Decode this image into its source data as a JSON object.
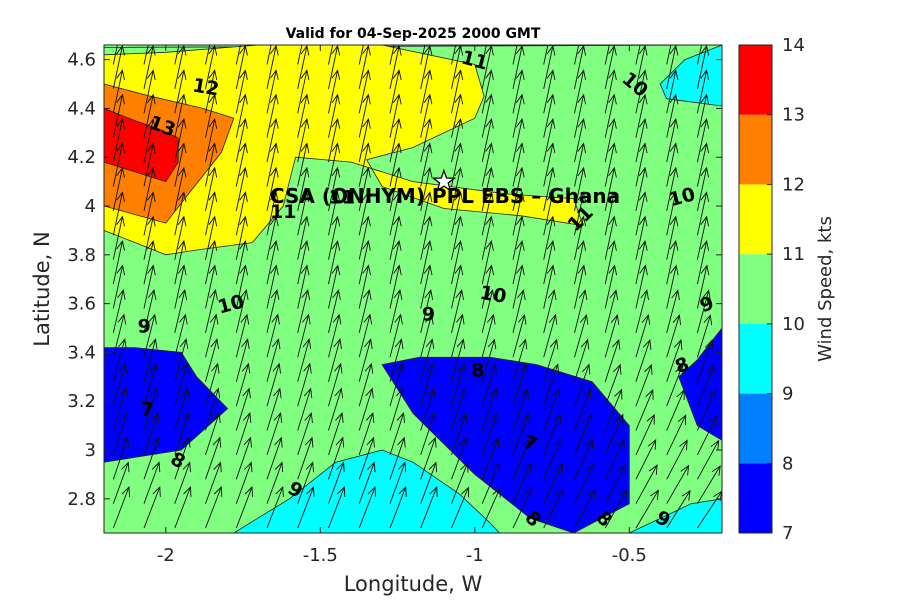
{
  "chart_data": {
    "type": "heatmap",
    "title": "Valid for 04-Sep-2025 2000 GMT",
    "xlabel": "Longitude, W",
    "ylabel": "Latitude, N",
    "xlim": [
      -2.2,
      -0.2
    ],
    "ylim": [
      2.66,
      4.66
    ],
    "x_ticks": [
      -2,
      -1.5,
      -1,
      -0.5
    ],
    "x_tick_labels": [
      "-2",
      "-1.5",
      "-1",
      "-0.5"
    ],
    "y_ticks": [
      2.8,
      3,
      3.2,
      3.4,
      3.6,
      3.8,
      4,
      4.2,
      4.4,
      4.6
    ],
    "y_tick_labels": [
      "2.8",
      "3",
      "3.2",
      "3.4",
      "3.6",
      "3.8",
      "4",
      "4.2",
      "4.4",
      "4.6"
    ],
    "colorbar": {
      "label": "Wind Speed, kts",
      "ticks": [
        7,
        8,
        9,
        10,
        11,
        12,
        13,
        14
      ],
      "tick_labels": [
        "7",
        "8",
        "9",
        "10",
        "11",
        "12",
        "13",
        "14"
      ],
      "bands": [
        {
          "from": 7,
          "to": 8,
          "color": "#0000ff"
        },
        {
          "from": 8,
          "to": 9,
          "color": "#0080ff"
        },
        {
          "from": 9,
          "to": 10,
          "color": "#00ffff"
        },
        {
          "from": 10,
          "to": 11,
          "color": "#80ff80"
        },
        {
          "from": 11,
          "to": 12,
          "color": "#ffff00"
        },
        {
          "from": 12,
          "to": 13,
          "color": "#ff8000"
        },
        {
          "from": 13,
          "to": 14,
          "color": "#ff0000"
        }
      ]
    },
    "filled_regions": [
      {
        "level": 8,
        "color": "#0080ff",
        "points": [
          [
            -2.2,
            3.6
          ],
          [
            -1.9,
            3.48
          ],
          [
            -1.75,
            3.5
          ],
          [
            -1.5,
            3.55
          ],
          [
            -1.3,
            3.58
          ],
          [
            -1.0,
            3.52
          ],
          [
            -0.7,
            3.48
          ],
          [
            -0.4,
            3.55
          ],
          [
            -0.2,
            3.67
          ],
          [
            -0.2,
            2.66
          ],
          [
            -2.2,
            2.66
          ]
        ]
      },
      {
        "level": 9,
        "color": "#00ffff",
        "points": [
          [
            -2.2,
            3.88
          ],
          [
            -2.0,
            3.8
          ],
          [
            -1.85,
            3.82
          ],
          [
            -1.7,
            3.8
          ],
          [
            -1.4,
            3.76
          ],
          [
            -1.1,
            3.74
          ],
          [
            -0.9,
            3.69
          ],
          [
            -0.6,
            3.62
          ],
          [
            -0.45,
            3.72
          ],
          [
            -0.35,
            3.85
          ],
          [
            -0.28,
            3.95
          ],
          [
            -0.2,
            4.0
          ],
          [
            -0.2,
            2.66
          ],
          [
            -2.2,
            2.66
          ]
        ]
      },
      {
        "level": 10,
        "color": "#80ff80",
        "points": [
          [
            -2.2,
            4.65
          ],
          [
            -2.05,
            4.62
          ],
          [
            -1.8,
            4.62
          ],
          [
            -1.3,
            4.62
          ],
          [
            -0.9,
            4.62
          ],
          [
            -0.75,
            4.64
          ],
          [
            -0.6,
            4.66
          ],
          [
            -2.2,
            4.66
          ]
        ]
      },
      {
        "level": 10,
        "color": "#80ff80",
        "points": [
          [
            -2.2,
            4.65
          ],
          [
            -0.2,
            4.66
          ],
          [
            -0.2,
            2.66
          ],
          [
            -2.2,
            2.66
          ]
        ]
      },
      {
        "level": 11,
        "color": "#ffff00",
        "points": [
          [
            -2.2,
            4.62
          ],
          [
            -2.0,
            4.63
          ],
          [
            -1.7,
            4.66
          ],
          [
            -1.3,
            4.66
          ],
          [
            -1.0,
            4.58
          ],
          [
            -0.97,
            4.45
          ],
          [
            -1.0,
            4.36
          ],
          [
            -1.2,
            4.24
          ],
          [
            -1.35,
            4.19
          ],
          [
            -1.3,
            4.08
          ],
          [
            -1.1,
            3.99
          ],
          [
            -0.85,
            3.96
          ],
          [
            -0.65,
            3.92
          ],
          [
            -0.68,
            4.03
          ],
          [
            -0.9,
            4.05
          ],
          [
            -1.2,
            4.1
          ],
          [
            -1.4,
            4.18
          ],
          [
            -1.58,
            4.2
          ],
          [
            -1.62,
            4.0
          ],
          [
            -1.72,
            3.85
          ],
          [
            -1.9,
            3.82
          ],
          [
            -2.0,
            3.8
          ],
          [
            -2.2,
            3.9
          ]
        ]
      },
      {
        "level": 12,
        "color": "#ff8000",
        "points": [
          [
            -2.2,
            4.5
          ],
          [
            -2.05,
            4.45
          ],
          [
            -1.88,
            4.4
          ],
          [
            -1.78,
            4.36
          ],
          [
            -1.82,
            4.22
          ],
          [
            -1.92,
            4.06
          ],
          [
            -2.0,
            3.93
          ],
          [
            -2.2,
            4.0
          ]
        ]
      },
      {
        "level": 13,
        "color": "#ff0000",
        "points": [
          [
            -2.2,
            4.4
          ],
          [
            -2.1,
            4.35
          ],
          [
            -2.03,
            4.32
          ],
          [
            -1.96,
            4.28
          ],
          [
            -1.96,
            4.18
          ],
          [
            -2.0,
            4.1
          ],
          [
            -2.2,
            4.18
          ]
        ]
      },
      {
        "level": 7,
        "color": "#0000ff",
        "points": [
          [
            -2.2,
            3.42
          ],
          [
            -2.1,
            3.42
          ],
          [
            -1.95,
            3.4
          ],
          [
            -1.9,
            3.3
          ],
          [
            -1.8,
            3.17
          ],
          [
            -1.95,
            3.0
          ],
          [
            -2.2,
            2.95
          ]
        ]
      },
      {
        "level": 7,
        "color": "#0000ff",
        "points": [
          [
            -1.3,
            3.35
          ],
          [
            -1.18,
            3.38
          ],
          [
            -0.95,
            3.38
          ],
          [
            -0.8,
            3.35
          ],
          [
            -0.62,
            3.28
          ],
          [
            -0.5,
            3.1
          ],
          [
            -0.5,
            2.78
          ],
          [
            -0.68,
            2.66
          ],
          [
            -0.82,
            2.72
          ],
          [
            -1.0,
            2.9
          ],
          [
            -1.2,
            3.15
          ]
        ]
      },
      {
        "level": 7,
        "color": "#0000ff",
        "points": [
          [
            -0.28,
            3.37
          ],
          [
            -0.2,
            3.5
          ],
          [
            -0.2,
            3.04
          ],
          [
            -0.28,
            3.1
          ],
          [
            -0.34,
            3.3
          ]
        ]
      },
      {
        "level": 9,
        "color": "#00ffff",
        "points": [
          [
            -1.78,
            2.66
          ],
          [
            -1.6,
            2.8
          ],
          [
            -1.45,
            2.95
          ],
          [
            -1.3,
            3.0
          ],
          [
            -1.2,
            2.95
          ],
          [
            -1.05,
            2.82
          ],
          [
            -0.95,
            2.7
          ],
          [
            -0.92,
            2.66
          ]
        ]
      },
      {
        "level": 9,
        "color": "#00ffff",
        "points": [
          [
            -0.5,
            2.66
          ],
          [
            -0.4,
            2.72
          ],
          [
            -0.3,
            2.78
          ],
          [
            -0.2,
            2.8
          ],
          [
            -0.2,
            2.66
          ]
        ]
      },
      {
        "level": 9,
        "color": "#00ffff",
        "points": [
          [
            -0.2,
            4.66
          ],
          [
            -0.32,
            4.6
          ],
          [
            -0.4,
            4.5
          ],
          [
            -0.38,
            4.44
          ],
          [
            -0.2,
            4.41
          ]
        ]
      }
    ],
    "contour_labels": [
      {
        "text": "13",
        "x": -2.01,
        "y": 4.33,
        "rotate": 20
      },
      {
        "text": "12",
        "x": -1.87,
        "y": 4.49,
        "rotate": 10
      },
      {
        "text": "11",
        "x": -1.0,
        "y": 4.6,
        "rotate": 15
      },
      {
        "text": "10",
        "x": -0.48,
        "y": 4.5,
        "rotate": 40
      },
      {
        "text": "11",
        "x": -1.62,
        "y": 3.98,
        "rotate": 0
      },
      {
        "text": "11",
        "x": -1.43,
        "y": 4.04,
        "rotate": 0
      },
      {
        "text": "11",
        "x": -0.66,
        "y": 3.95,
        "rotate": -45
      },
      {
        "text": "10",
        "x": -0.33,
        "y": 4.04,
        "rotate": -15
      },
      {
        "text": "10",
        "x": -1.79,
        "y": 3.6,
        "rotate": -15
      },
      {
        "text": "10",
        "x": -0.94,
        "y": 3.64,
        "rotate": 10
      },
      {
        "text": "9",
        "x": -2.07,
        "y": 3.51,
        "rotate": 0
      },
      {
        "text": "9",
        "x": -1.15,
        "y": 3.56,
        "rotate": 0
      },
      {
        "text": "9",
        "x": -0.25,
        "y": 3.6,
        "rotate": -20
      },
      {
        "text": "8",
        "x": -0.99,
        "y": 3.33,
        "rotate": 0
      },
      {
        "text": "8",
        "x": -0.33,
        "y": 3.35,
        "rotate": -20
      },
      {
        "text": "7",
        "x": -2.06,
        "y": 3.17,
        "rotate": 0
      },
      {
        "text": "7",
        "x": -0.82,
        "y": 3.03,
        "rotate": 20
      },
      {
        "text": "8",
        "x": -1.96,
        "y": 2.96,
        "rotate": 30
      },
      {
        "text": "8",
        "x": -0.81,
        "y": 2.72,
        "rotate": 45
      },
      {
        "text": "8",
        "x": -0.58,
        "y": 2.72,
        "rotate": 45
      },
      {
        "text": "9",
        "x": -1.58,
        "y": 2.84,
        "rotate": 30
      },
      {
        "text": "9",
        "x": -0.39,
        "y": 2.72,
        "rotate": 30
      }
    ],
    "station": {
      "label": "CSA (ONHYM) PPL EBS  – Ghana",
      "marker": "star-icon",
      "x": -1.1,
      "y": 4.1
    },
    "vector_field": {
      "description_type": "wind arrows",
      "x_start": -2.17,
      "x_step": 0.0995,
      "y_start": 2.68,
      "y_step": 0.1,
      "nx": 20,
      "ny": 20,
      "direction": "toward NNE, veering to NE in the south-east"
    }
  }
}
